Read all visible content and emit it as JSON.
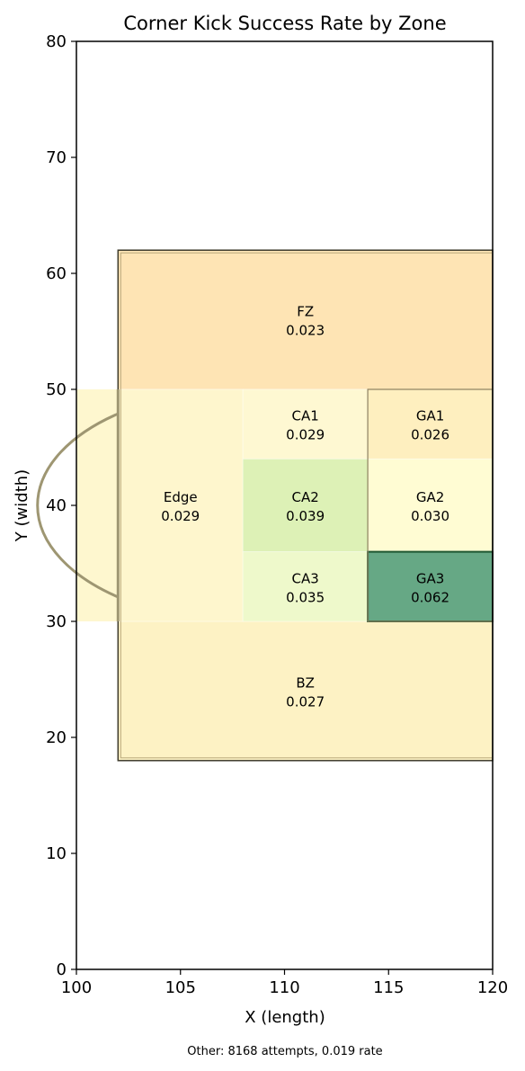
{
  "chart_data": {
    "type": "heatmap",
    "title": "Corner Kick Success Rate by Zone",
    "xlabel": "X (length)",
    "ylabel": "Y (width)",
    "xlim": [
      100,
      120
    ],
    "ylim": [
      0,
      80
    ],
    "xticks": [
      "100",
      "105",
      "110",
      "115",
      "120"
    ],
    "yticks": [
      "0",
      "10",
      "20",
      "30",
      "40",
      "50",
      "60",
      "70",
      "80"
    ],
    "grid": false,
    "colormap": "yellow-green",
    "zones": [
      {
        "name": "FZ",
        "rate_label": "0.023",
        "rate": 0.023,
        "x": [
          102,
          120
        ],
        "y": [
          50,
          62
        ],
        "color": "#fee4b4"
      },
      {
        "name": "BZ",
        "rate_label": "0.027",
        "rate": 0.027,
        "x": [
          102,
          120
        ],
        "y": [
          18,
          30
        ],
        "color": "#fdf2c4"
      },
      {
        "name": "Edge",
        "rate_label": "0.029",
        "rate": 0.029,
        "x": [
          102,
          108
        ],
        "y": [
          30,
          50
        ],
        "color": "#fef6cd"
      },
      {
        "name": "CA1",
        "rate_label": "0.029",
        "rate": 0.029,
        "x": [
          108,
          114
        ],
        "y": [
          44,
          50
        ],
        "color": "#fef8d2"
      },
      {
        "name": "CA2",
        "rate_label": "0.039",
        "rate": 0.039,
        "x": [
          108,
          114
        ],
        "y": [
          36,
          44
        ],
        "color": "#ddf1b6"
      },
      {
        "name": "CA3",
        "rate_label": "0.035",
        "rate": 0.035,
        "x": [
          108,
          114
        ],
        "y": [
          30,
          36
        ],
        "color": "#eef9cb"
      },
      {
        "name": "GA1",
        "rate_label": "0.026",
        "rate": 0.026,
        "x": [
          114,
          120
        ],
        "y": [
          44,
          50
        ],
        "color": "#feefbf"
      },
      {
        "name": "GA2",
        "rate_label": "0.030",
        "rate": 0.03,
        "x": [
          114,
          120
        ],
        "y": [
          36,
          44
        ],
        "color": "#fffcd3"
      },
      {
        "name": "GA3",
        "rate_label": "0.062",
        "rate": 0.062,
        "x": [
          114,
          120
        ],
        "y": [
          30,
          36
        ],
        "color": "#66a885"
      }
    ],
    "annotation": "Other: 8168 attempts, 0.019 rate"
  }
}
